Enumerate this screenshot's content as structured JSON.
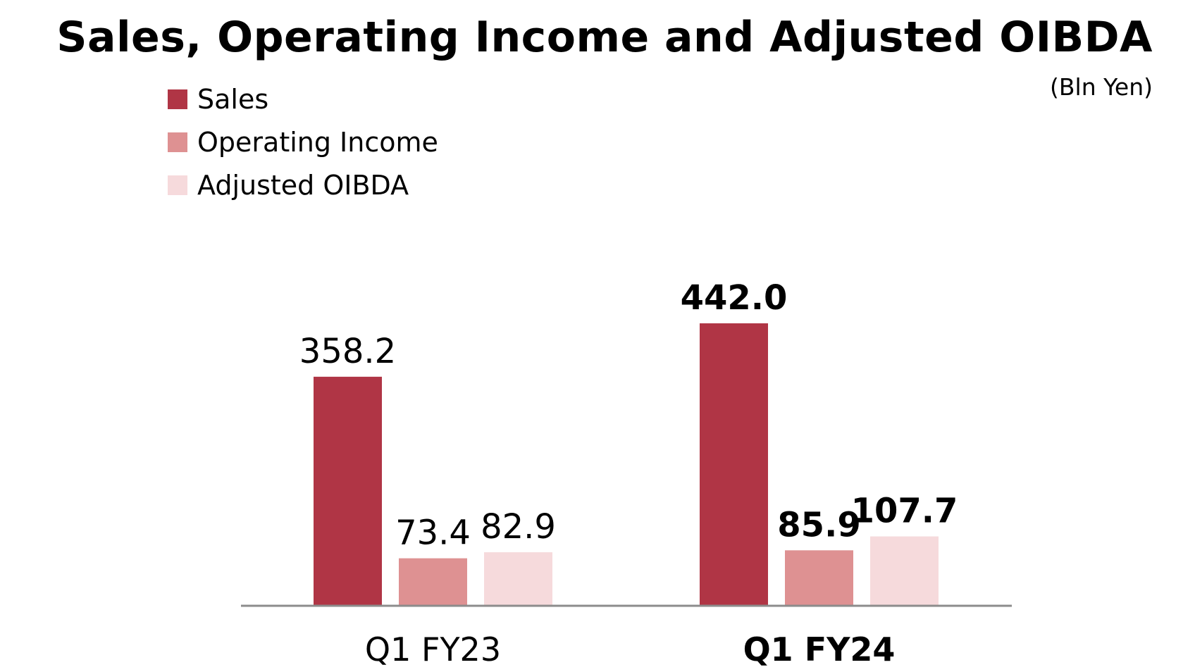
{
  "title": "Sales, Operating Income and Adjusted OIBDA",
  "unit": "(Bln Yen)",
  "chart_data": {
    "type": "bar",
    "title": "Sales, Operating Income and Adjusted OIBDA",
    "xlabel": "",
    "ylabel": "",
    "unit": "(Bln Yen)",
    "categories": [
      "Q1 FY23",
      "Q1 FY24"
    ],
    "category_bold": [
      false,
      true
    ],
    "series": [
      {
        "name": "Sales",
        "values": [
          358.2,
          442.0
        ],
        "labels": [
          "358.2",
          "442.0"
        ],
        "color": "#B03545"
      },
      {
        "name": "Operating Income",
        "values": [
          73.4,
          85.9
        ],
        "labels": [
          "73.4",
          "85.9"
        ],
        "color": "#DE9192"
      },
      {
        "name": "Adjusted OIBDA",
        "values": [
          82.9,
          107.7
        ],
        "labels": [
          "82.9",
          "107.7"
        ],
        "color": "#F6DADC"
      }
    ],
    "ylim": [
      0,
      442.0
    ],
    "grid": false,
    "legend": "top-left",
    "axis_color": "#8C8C8C"
  }
}
